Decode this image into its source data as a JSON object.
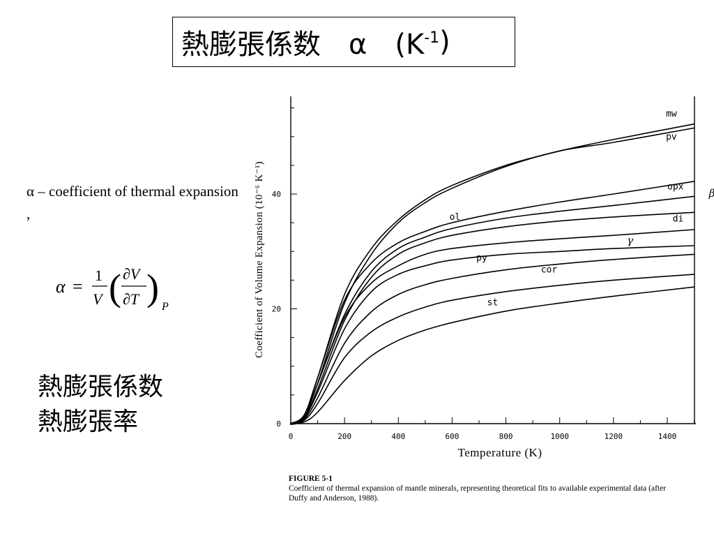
{
  "slide": {
    "title_main": "熱膨張係数　α　(K",
    "title_sup": "-1",
    "title_close": ")",
    "description": "α – coefficient of thermal expansion ,",
    "formula": {
      "lhs": "α",
      "eq": "=",
      "frac1_num": "1",
      "frac1_den": "V",
      "frac2_num": "∂V",
      "frac2_den": "∂T",
      "subscript": "P"
    },
    "jp_terms": [
      "熱膨張係数",
      "熱膨張率"
    ]
  },
  "caption": {
    "figure_label": "FIGURE 5-1",
    "text": "Coefficient of thermal expansion of mantle minerals, representing theoretical fits to available experimental data (after Duffy and Anderson, 1988)."
  },
  "chart_data": {
    "type": "line",
    "xlabel": "Temperature (K)",
    "ylabel": "Coefficient of Volume Expansion (10⁻⁶ K⁻¹)",
    "xlim": [
      0,
      1500
    ],
    "ylim": [
      0,
      57
    ],
    "x_ticks": [
      0,
      200,
      400,
      600,
      800,
      1000,
      1200,
      1400
    ],
    "y_ticks": [
      0,
      20,
      40
    ],
    "grid": false,
    "series": [
      {
        "name": "mw",
        "x": [
          0,
          50,
          100,
          200,
          300,
          400,
          500,
          600,
          800,
          1000,
          1200,
          1500
        ],
        "y": [
          0,
          1.5,
          8,
          22.5,
          30.5,
          35.5,
          39,
          41.5,
          45,
          47.5,
          49.5,
          52.2
        ]
      },
      {
        "name": "pv",
        "x": [
          0,
          50,
          100,
          200,
          300,
          400,
          500,
          600,
          800,
          1000,
          1200,
          1500
        ],
        "y": [
          0,
          1.2,
          7,
          21,
          29.5,
          35,
          38.5,
          41,
          44.8,
          47.5,
          49,
          51.5
        ]
      },
      {
        "name": "opx",
        "x": [
          0,
          50,
          100,
          200,
          300,
          400,
          500,
          600,
          800,
          1000,
          1200,
          1500
        ],
        "y": [
          0,
          1.5,
          8,
          21.5,
          28,
          31.5,
          33.5,
          35,
          37,
          38.6,
          40,
          42.2
        ]
      },
      {
        "name": "ol",
        "x": [
          0,
          50,
          100,
          200,
          300,
          400,
          500,
          600,
          800,
          1000,
          1200,
          1500
        ],
        "y": [
          0,
          1.2,
          7,
          19,
          26.5,
          30.5,
          32.5,
          34,
          35.8,
          37,
          38,
          39.6
        ]
      },
      {
        "name": "β",
        "x": [
          0,
          50,
          100,
          200,
          300,
          400,
          500,
          600,
          800,
          1000,
          1200,
          1500
        ],
        "y": [
          0,
          1,
          6,
          18,
          25.5,
          29.5,
          31.5,
          32.8,
          34.3,
          35.3,
          36,
          36.8
        ]
      },
      {
        "name": "di",
        "x": [
          0,
          50,
          100,
          200,
          300,
          400,
          500,
          600,
          800,
          1000,
          1200,
          1500
        ],
        "y": [
          0,
          1.3,
          7,
          18.5,
          24.5,
          27.5,
          29.5,
          30.5,
          31.5,
          32.2,
          32.8,
          33.8
        ]
      },
      {
        "name": "γ",
        "x": [
          0,
          50,
          100,
          200,
          300,
          400,
          500,
          600,
          800,
          1000,
          1200,
          1500
        ],
        "y": [
          0,
          1,
          5.5,
          16.5,
          23,
          26,
          27.5,
          28.5,
          29.5,
          30,
          30.5,
          31
        ]
      },
      {
        "name": "py",
        "x": [
          0,
          50,
          100,
          200,
          300,
          400,
          500,
          600,
          800,
          1000,
          1200,
          1500
        ],
        "y": [
          0,
          0.8,
          4.5,
          14,
          19.5,
          22.5,
          24.2,
          25.3,
          26.8,
          27.8,
          28.6,
          29.5
        ]
      },
      {
        "name": "cor",
        "x": [
          0,
          50,
          100,
          200,
          300,
          400,
          500,
          600,
          800,
          1000,
          1200,
          1500
        ],
        "y": [
          0,
          0.6,
          3.5,
          11.5,
          16,
          18.6,
          20.3,
          21.5,
          23,
          24.1,
          25,
          26
        ]
      },
      {
        "name": "st",
        "x": [
          0,
          50,
          100,
          200,
          300,
          400,
          500,
          600,
          800,
          1000,
          1200,
          1500
        ],
        "y": [
          0,
          0.3,
          2,
          7.5,
          11.8,
          14.5,
          16.3,
          17.6,
          19.6,
          21,
          22.2,
          23.8
        ]
      }
    ],
    "annotations": [
      {
        "text": "mw",
        "x": 1395,
        "y": 53.5
      },
      {
        "text": "pv",
        "x": 1395,
        "y": 49.5
      },
      {
        "text": "opx",
        "x": 1400,
        "y": 40.8
      },
      {
        "text": "β",
        "x": 1555,
        "y": 39.5
      },
      {
        "text": "ol",
        "x": 590,
        "y": 35.5
      },
      {
        "text": "di",
        "x": 1420,
        "y": 35.2
      },
      {
        "text": "γ",
        "x": 1250,
        "y": 31.3
      },
      {
        "text": "py",
        "x": 690,
        "y": 28.4
      },
      {
        "text": "cor",
        "x": 930,
        "y": 26.3
      },
      {
        "text": "st",
        "x": 730,
        "y": 20.6
      }
    ]
  }
}
